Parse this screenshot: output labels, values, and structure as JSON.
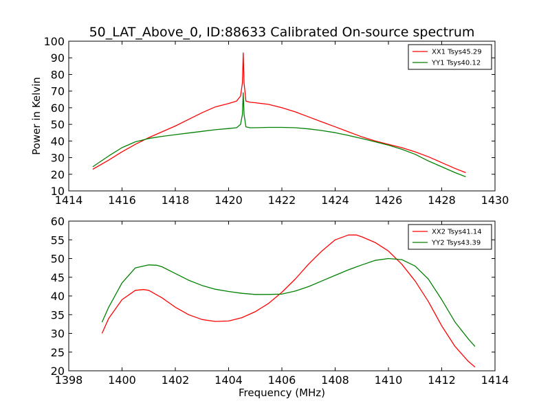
{
  "chart_data": [
    {
      "type": "line",
      "title": "50_LAT_Above_0, ID:88633 Calibrated On-source spectrum",
      "xlabel": "",
      "ylabel": "Power in Kelvin",
      "xlim": [
        1414,
        1430
      ],
      "ylim": [
        10,
        100
      ],
      "xticks": [
        1414,
        1416,
        1418,
        1420,
        1422,
        1424,
        1426,
        1428,
        1430
      ],
      "yticks": [
        10,
        20,
        30,
        40,
        50,
        60,
        70,
        80,
        90,
        100
      ],
      "grid": false,
      "legend_position": "top-right",
      "series": [
        {
          "name": "XX1 Tsys45.29",
          "color": "#ff0000",
          "x": [
            1414.9,
            1415.5,
            1416.0,
            1416.5,
            1417.0,
            1417.5,
            1418.0,
            1418.5,
            1419.0,
            1419.5,
            1420.0,
            1420.3,
            1420.45,
            1420.52,
            1420.55,
            1420.58,
            1420.65,
            1420.8,
            1421.0,
            1421.5,
            1422.0,
            1422.5,
            1423.0,
            1423.5,
            1424.0,
            1424.5,
            1425.0,
            1425.5,
            1426.0,
            1426.5,
            1427.0,
            1427.5,
            1428.0,
            1428.5,
            1428.9
          ],
          "y": [
            23.0,
            28.5,
            33.5,
            38.0,
            42.0,
            45.5,
            49.0,
            53.0,
            57.0,
            60.5,
            62.5,
            64.0,
            67.0,
            75.0,
            93.0,
            75.0,
            64.0,
            63.3,
            63.0,
            62.0,
            60.0,
            57.5,
            54.5,
            51.5,
            48.5,
            45.5,
            42.5,
            40.0,
            38.0,
            36.0,
            33.5,
            30.5,
            27.0,
            23.5,
            21.0
          ]
        },
        {
          "name": "YY1 Tsys40.12",
          "color": "#008000",
          "x": [
            1414.9,
            1415.5,
            1416.0,
            1416.5,
            1417.0,
            1417.5,
            1418.0,
            1418.5,
            1419.0,
            1419.5,
            1420.0,
            1420.3,
            1420.45,
            1420.52,
            1420.55,
            1420.58,
            1420.65,
            1420.8,
            1421.0,
            1421.5,
            1422.0,
            1422.5,
            1423.0,
            1423.5,
            1424.0,
            1424.5,
            1425.0,
            1425.5,
            1426.0,
            1426.5,
            1427.0,
            1427.5,
            1428.0,
            1428.5,
            1428.9
          ],
          "y": [
            24.5,
            31.0,
            36.0,
            39.5,
            41.5,
            42.8,
            43.8,
            44.8,
            45.8,
            46.8,
            47.5,
            48.0,
            50.0,
            56.0,
            69.0,
            56.0,
            48.5,
            48.0,
            48.0,
            48.2,
            48.2,
            48.0,
            47.3,
            46.3,
            45.0,
            43.3,
            41.5,
            39.5,
            37.5,
            35.0,
            32.0,
            28.0,
            24.5,
            21.0,
            18.5
          ]
        }
      ]
    },
    {
      "type": "line",
      "title": "",
      "xlabel": "Frequency (MHz)",
      "ylabel": "",
      "xlim": [
        1398,
        1414
      ],
      "ylim": [
        20,
        60
      ],
      "xticks": [
        1398,
        1400,
        1402,
        1404,
        1406,
        1408,
        1410,
        1412,
        1414
      ],
      "yticks": [
        20,
        25,
        30,
        35,
        40,
        45,
        50,
        55,
        60
      ],
      "grid": false,
      "legend_position": "top-right",
      "series": [
        {
          "name": "XX2 Tsys41.14",
          "color": "#ff0000",
          "x": [
            1399.25,
            1399.5,
            1400.0,
            1400.5,
            1400.8,
            1401.0,
            1401.5,
            1402.0,
            1402.5,
            1403.0,
            1403.5,
            1404.0,
            1404.5,
            1405.0,
            1405.5,
            1406.0,
            1406.5,
            1407.0,
            1407.5,
            1408.0,
            1408.5,
            1408.8,
            1409.0,
            1409.5,
            1410.0,
            1410.5,
            1411.0,
            1411.5,
            1412.0,
            1412.5,
            1413.0,
            1413.25
          ],
          "y": [
            30.0,
            34.0,
            39.0,
            41.5,
            41.7,
            41.5,
            39.5,
            37.0,
            35.0,
            33.7,
            33.2,
            33.3,
            34.2,
            35.8,
            38.0,
            41.0,
            44.5,
            48.5,
            52.0,
            55.0,
            56.3,
            56.3,
            55.8,
            54.3,
            52.0,
            48.5,
            44.0,
            38.5,
            32.0,
            26.5,
            22.5,
            21.0
          ]
        },
        {
          "name": "YY2 Tsys43.39",
          "color": "#008000",
          "x": [
            1399.25,
            1399.5,
            1400.0,
            1400.5,
            1401.0,
            1401.3,
            1401.5,
            1402.0,
            1402.5,
            1403.0,
            1403.5,
            1404.0,
            1404.5,
            1405.0,
            1405.5,
            1406.0,
            1406.5,
            1407.0,
            1407.5,
            1408.0,
            1408.5,
            1409.0,
            1409.5,
            1410.0,
            1410.5,
            1411.0,
            1411.5,
            1412.0,
            1412.5,
            1413.0,
            1413.25
          ],
          "y": [
            33.0,
            37.0,
            43.5,
            47.5,
            48.3,
            48.2,
            47.8,
            46.0,
            44.2,
            42.8,
            41.8,
            41.2,
            40.7,
            40.4,
            40.4,
            40.5,
            41.3,
            42.5,
            44.0,
            45.5,
            47.0,
            48.3,
            49.5,
            50.0,
            49.7,
            48.0,
            44.5,
            39.0,
            33.0,
            28.5,
            26.5
          ]
        }
      ]
    }
  ]
}
